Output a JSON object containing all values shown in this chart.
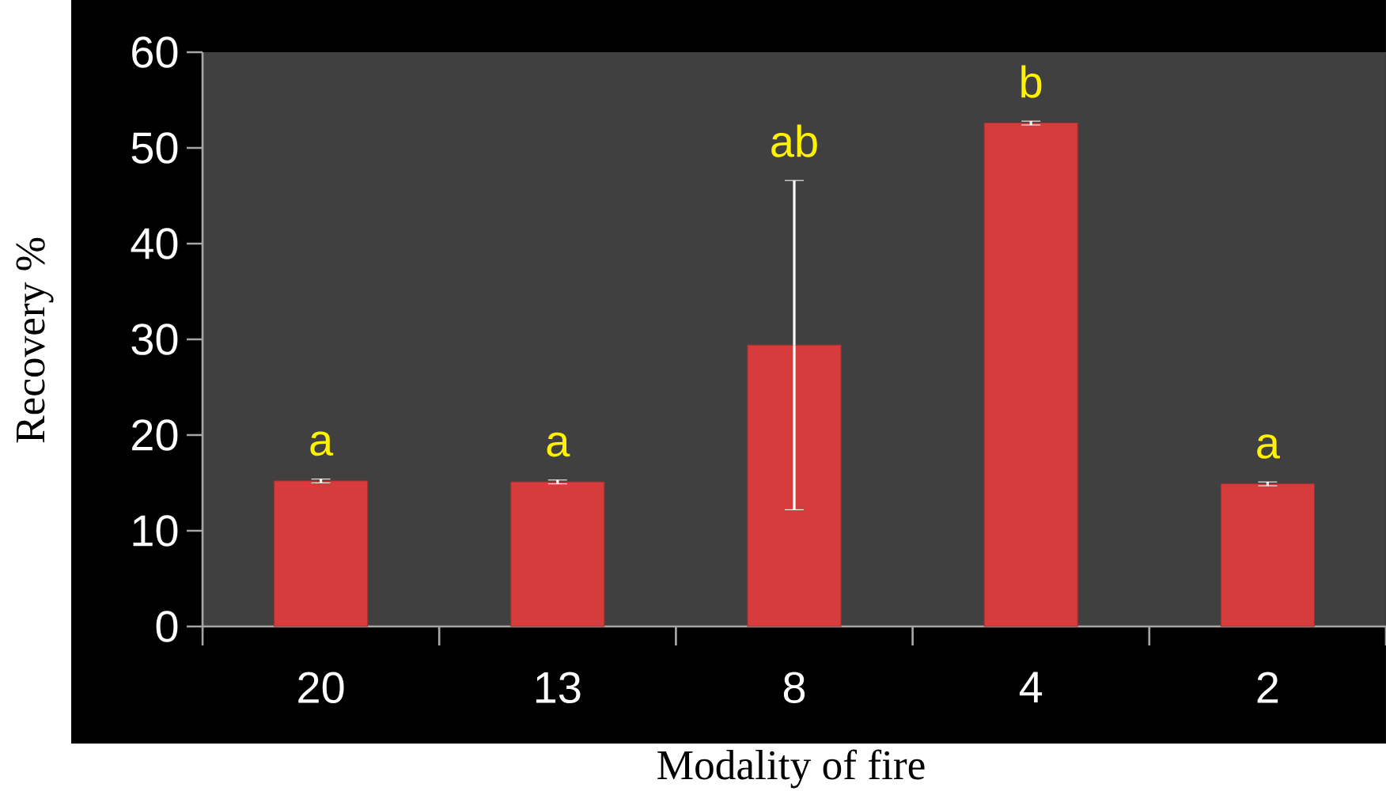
{
  "chart_data": {
    "type": "bar",
    "xlabel": "Modality of fire",
    "ylabel": "Recovery %",
    "categories": [
      "20",
      "13",
      "8",
      "4",
      "2"
    ],
    "values": [
      15.2,
      15.1,
      29.4,
      52.6,
      14.9
    ],
    "errors": [
      0.2,
      0.2,
      17.2,
      0.2,
      0.2
    ],
    "color": "#d63c3c",
    "ylim": [
      0,
      60
    ],
    "yticks": [
      0,
      10,
      20,
      30,
      40,
      50,
      60
    ],
    "annotations": [
      "a",
      "a",
      "ab",
      "b",
      "a"
    ]
  }
}
